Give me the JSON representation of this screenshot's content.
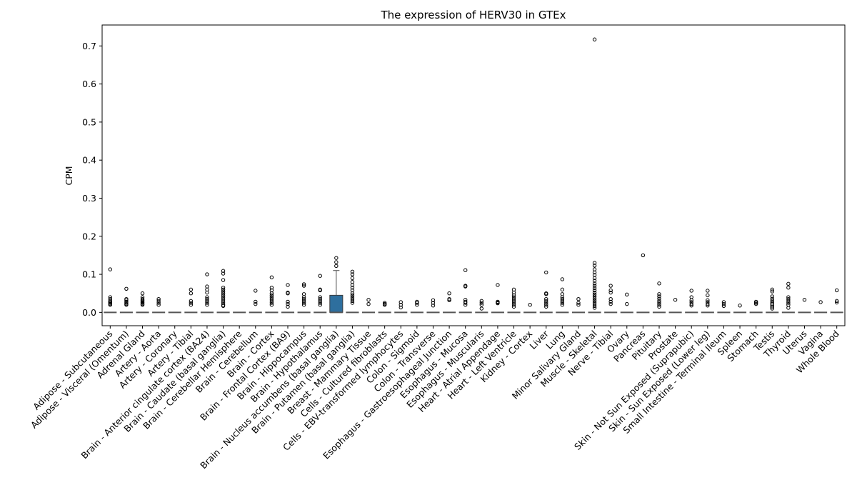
{
  "chart_data": {
    "type": "box",
    "title": "The expression of HERV30 in GTEx",
    "xlabel": "",
    "ylabel": "CPM",
    "ylim": [
      -0.035,
      0.755
    ],
    "yticks": [
      0.0,
      0.1,
      0.2,
      0.3,
      0.4,
      0.5,
      0.6,
      0.7
    ],
    "ytick_labels": [
      "0.0",
      "0.1",
      "0.2",
      "0.3",
      "0.4",
      "0.5",
      "0.6",
      "0.7"
    ],
    "box_color": "#2e6f9e",
    "median_color": "#555555",
    "categories": [
      {
        "name": "Adipose - Subcutaneous",
        "q1": 0,
        "median": 0,
        "q3": 0,
        "whisker_low": 0,
        "whisker_high": 0,
        "outliers": [
          0.113,
          0.04,
          0.035,
          0.03,
          0.027,
          0.025,
          0.022,
          0.02
        ]
      },
      {
        "name": "Adipose - Visceral (Omentum)",
        "q1": 0,
        "median": 0,
        "q3": 0,
        "whisker_low": 0,
        "whisker_high": 0,
        "outliers": [
          0.062,
          0.035,
          0.032,
          0.028,
          0.025,
          0.022,
          0.02
        ]
      },
      {
        "name": "Adrenal Gland",
        "q1": 0,
        "median": 0,
        "q3": 0,
        "whisker_low": 0,
        "whisker_high": 0,
        "outliers": [
          0.05,
          0.04,
          0.035,
          0.032,
          0.03,
          0.027,
          0.025,
          0.022,
          0.02
        ]
      },
      {
        "name": "Artery - Aorta",
        "q1": 0,
        "median": 0,
        "q3": 0,
        "whisker_low": 0,
        "whisker_high": 0,
        "outliers": [
          0.035,
          0.03,
          0.025,
          0.02
        ]
      },
      {
        "name": "Artery - Coronary",
        "q1": 0,
        "median": 0,
        "q3": 0,
        "whisker_low": 0,
        "whisker_high": 0,
        "outliers": []
      },
      {
        "name": "Artery - Tibial",
        "q1": 0,
        "median": 0,
        "q3": 0,
        "whisker_low": 0,
        "whisker_high": 0,
        "outliers": [
          0.06,
          0.05,
          0.03,
          0.025,
          0.02
        ]
      },
      {
        "name": "Brain - Anterior cingulate cortex (BA24)",
        "q1": 0,
        "median": 0,
        "q3": 0,
        "whisker_low": 0,
        "whisker_high": 0,
        "outliers": [
          0.1,
          0.068,
          0.06,
          0.052,
          0.04,
          0.035,
          0.03,
          0.025,
          0.02
        ]
      },
      {
        "name": "Brain - Caudate (basal ganglia)",
        "q1": 0,
        "median": 0,
        "q3": 0,
        "whisker_low": 0,
        "whisker_high": 0,
        "outliers": [
          0.109,
          0.102,
          0.085,
          0.065,
          0.06,
          0.055,
          0.05,
          0.045,
          0.04,
          0.035,
          0.03,
          0.025,
          0.02,
          0.017
        ]
      },
      {
        "name": "Brain - Cerebellar Hemisphere",
        "q1": 0,
        "median": 0,
        "q3": 0,
        "whisker_low": 0,
        "whisker_high": 0,
        "outliers": []
      },
      {
        "name": "Brain - Cerebellum",
        "q1": 0,
        "median": 0,
        "q3": 0,
        "whisker_low": 0,
        "whisker_high": 0,
        "outliers": [
          0.057,
          0.028,
          0.022
        ]
      },
      {
        "name": "Brain - Cortex",
        "q1": 0,
        "median": 0,
        "q3": 0,
        "whisker_low": 0,
        "whisker_high": 0,
        "outliers": [
          0.092,
          0.065,
          0.058,
          0.05,
          0.045,
          0.04,
          0.035,
          0.03,
          0.025,
          0.02
        ]
      },
      {
        "name": "Brain - Frontal Cortex (BA9)",
        "q1": 0,
        "median": 0,
        "q3": 0,
        "whisker_low": 0,
        "whisker_high": 0,
        "outliers": [
          0.072,
          0.052,
          0.05,
          0.028,
          0.022,
          0.015
        ]
      },
      {
        "name": "Brain - Hippocampus",
        "q1": 0,
        "median": 0,
        "q3": 0,
        "whisker_low": 0,
        "whisker_high": 0,
        "outliers": [
          0.074,
          0.07,
          0.048,
          0.04,
          0.035,
          0.03,
          0.025,
          0.02
        ]
      },
      {
        "name": "Brain - Hypothalamus",
        "q1": 0,
        "median": 0,
        "q3": 0,
        "whisker_low": 0,
        "whisker_high": 0,
        "outliers": [
          0.096,
          0.06,
          0.058,
          0.04,
          0.035,
          0.03,
          0.025,
          0.02
        ]
      },
      {
        "name": "Brain - Nucleus accumbens (basal ganglia)",
        "q1": 0,
        "median": 0,
        "q3": 0.045,
        "whisker_low": 0,
        "whisker_high": 0.11,
        "outliers": [
          0.143,
          0.132,
          0.122
        ]
      },
      {
        "name": "Brain - Putamen (basal ganglia)",
        "q1": 0,
        "median": 0,
        "q3": 0,
        "whisker_low": 0,
        "whisker_high": 0,
        "outliers": [
          0.107,
          0.1,
          0.09,
          0.08,
          0.072,
          0.065,
          0.058,
          0.05,
          0.045,
          0.04,
          0.035,
          0.03,
          0.025
        ]
      },
      {
        "name": "Breast - Mammary Tissue",
        "q1": 0,
        "median": 0,
        "q3": 0,
        "whisker_low": 0,
        "whisker_high": 0,
        "outliers": [
          0.033,
          0.022
        ]
      },
      {
        "name": "Cells - Cultured fibroblasts",
        "q1": 0,
        "median": 0,
        "q3": 0,
        "whisker_low": 0,
        "whisker_high": 0,
        "outliers": [
          0.025,
          0.022,
          0.02
        ]
      },
      {
        "name": "Cells - EBV-transformed lymphocytes",
        "q1": 0,
        "median": 0,
        "q3": 0,
        "whisker_low": 0,
        "whisker_high": 0,
        "outliers": [
          0.027,
          0.02,
          0.013
        ]
      },
      {
        "name": "Colon - Sigmoid",
        "q1": 0,
        "median": 0,
        "q3": 0,
        "whisker_low": 0,
        "whisker_high": 0,
        "outliers": [
          0.028,
          0.025,
          0.02
        ]
      },
      {
        "name": "Colon - Transverse",
        "q1": 0,
        "median": 0,
        "q3": 0,
        "whisker_low": 0,
        "whisker_high": 0,
        "outliers": [
          0.032,
          0.025,
          0.018
        ]
      },
      {
        "name": "Esophagus - Gastroesophageal Junction",
        "q1": 0,
        "median": 0,
        "q3": 0,
        "whisker_low": 0,
        "whisker_high": 0,
        "outliers": [
          0.05,
          0.035,
          0.032
        ]
      },
      {
        "name": "Esophagus - Mucosa",
        "q1": 0,
        "median": 0,
        "q3": 0,
        "whisker_low": 0,
        "whisker_high": 0,
        "outliers": [
          0.111,
          0.07,
          0.068,
          0.033,
          0.028,
          0.025,
          0.02
        ]
      },
      {
        "name": "Esophagus - Muscularis",
        "q1": 0,
        "median": 0,
        "q3": 0,
        "whisker_low": 0,
        "whisker_high": 0,
        "outliers": [
          0.03,
          0.025,
          0.02,
          0.01
        ]
      },
      {
        "name": "Heart - Atrial Appendage",
        "q1": 0,
        "median": 0,
        "q3": 0,
        "whisker_low": 0,
        "whisker_high": 0,
        "outliers": [
          0.072,
          0.028,
          0.026,
          0.024
        ]
      },
      {
        "name": "Heart - Left Ventricle",
        "q1": 0,
        "median": 0,
        "q3": 0,
        "whisker_low": 0,
        "whisker_high": 0,
        "outliers": [
          0.06,
          0.052,
          0.045,
          0.04,
          0.035,
          0.03,
          0.025,
          0.02,
          0.015
        ]
      },
      {
        "name": "Kidney - Cortex",
        "q1": 0,
        "median": 0,
        "q3": 0,
        "whisker_low": 0,
        "whisker_high": 0,
        "outliers": [
          0.02
        ]
      },
      {
        "name": "Liver",
        "q1": 0,
        "median": 0,
        "q3": 0,
        "whisker_low": 0,
        "whisker_high": 0,
        "outliers": [
          0.105,
          0.05,
          0.048,
          0.035,
          0.03,
          0.025,
          0.02,
          0.015
        ]
      },
      {
        "name": "Lung",
        "q1": 0,
        "median": 0,
        "q3": 0,
        "whisker_low": 0,
        "whisker_high": 0,
        "outliers": [
          0.087,
          0.06,
          0.048,
          0.04,
          0.035,
          0.03,
          0.025,
          0.02
        ]
      },
      {
        "name": "Minor Salivary Gland",
        "q1": 0,
        "median": 0,
        "q3": 0,
        "whisker_low": 0,
        "whisker_high": 0,
        "outliers": [
          0.035,
          0.025,
          0.02
        ]
      },
      {
        "name": "Muscle - Skeletal",
        "q1": 0,
        "median": 0,
        "q3": 0,
        "whisker_low": 0,
        "whisker_high": 0,
        "outliers": [
          0.717,
          0.13,
          0.123,
          0.113,
          0.105,
          0.098,
          0.09,
          0.083,
          0.076,
          0.07,
          0.064,
          0.058,
          0.052,
          0.047,
          0.042,
          0.037,
          0.032,
          0.027,
          0.022,
          0.017,
          0.012
        ]
      },
      {
        "name": "Nerve - Tibial",
        "q1": 0,
        "median": 0,
        "q3": 0,
        "whisker_low": 0,
        "whisker_high": 0,
        "outliers": [
          0.07,
          0.058,
          0.052,
          0.035,
          0.028,
          0.022
        ]
      },
      {
        "name": "Ovary",
        "q1": 0,
        "median": 0,
        "q3": 0,
        "whisker_low": 0,
        "whisker_high": 0,
        "outliers": [
          0.047,
          0.022
        ]
      },
      {
        "name": "Pancreas",
        "q1": 0,
        "median": 0,
        "q3": 0,
        "whisker_low": 0,
        "whisker_high": 0,
        "outliers": [
          0.15
        ]
      },
      {
        "name": "Pituitary",
        "q1": 0,
        "median": 0,
        "q3": 0,
        "whisker_low": 0,
        "whisker_high": 0,
        "outliers": [
          0.076,
          0.048,
          0.042,
          0.036,
          0.03,
          0.025,
          0.02,
          0.015
        ]
      },
      {
        "name": "Prostate",
        "q1": 0,
        "median": 0,
        "q3": 0,
        "whisker_low": 0,
        "whisker_high": 0,
        "outliers": [
          0.033
        ]
      },
      {
        "name": "Skin - Not Sun Exposed (Suprapubic)",
        "q1": 0,
        "median": 0,
        "q3": 0,
        "whisker_low": 0,
        "whisker_high": 0,
        "outliers": [
          0.057,
          0.04,
          0.032,
          0.027,
          0.022,
          0.018
        ]
      },
      {
        "name": "Skin - Sun Exposed (Lower leg)",
        "q1": 0,
        "median": 0,
        "q3": 0,
        "whisker_low": 0,
        "whisker_high": 0,
        "outliers": [
          0.057,
          0.045,
          0.032,
          0.027,
          0.022,
          0.018
        ]
      },
      {
        "name": "Small Intestine - Terminal Ileum",
        "q1": 0,
        "median": 0,
        "q3": 0,
        "whisker_low": 0,
        "whisker_high": 0,
        "outliers": [
          0.027,
          0.022,
          0.017
        ]
      },
      {
        "name": "Spleen",
        "q1": 0,
        "median": 0,
        "q3": 0,
        "whisker_low": 0,
        "whisker_high": 0,
        "outliers": [
          0.018
        ]
      },
      {
        "name": "Stomach",
        "q1": 0,
        "median": 0,
        "q3": 0,
        "whisker_low": 0,
        "whisker_high": 0,
        "outliers": [
          0.028,
          0.025,
          0.022
        ]
      },
      {
        "name": "Testis",
        "q1": 0,
        "median": 0,
        "q3": 0,
        "whisker_low": 0,
        "whisker_high": 0,
        "outliers": [
          0.06,
          0.055,
          0.042,
          0.036,
          0.031,
          0.026,
          0.022,
          0.018,
          0.014,
          0.01
        ]
      },
      {
        "name": "Thyroid",
        "q1": 0,
        "median": 0,
        "q3": 0,
        "whisker_low": 0,
        "whisker_high": 0,
        "outliers": [
          0.075,
          0.065,
          0.04,
          0.035,
          0.03,
          0.025,
          0.02,
          0.012
        ]
      },
      {
        "name": "Uterus",
        "q1": 0,
        "median": 0,
        "q3": 0,
        "whisker_low": 0,
        "whisker_high": 0,
        "outliers": [
          0.033
        ]
      },
      {
        "name": "Vagina",
        "q1": 0,
        "median": 0,
        "q3": 0,
        "whisker_low": 0,
        "whisker_high": 0,
        "outliers": [
          0.027
        ]
      },
      {
        "name": "Whole Blood",
        "q1": 0,
        "median": 0,
        "q3": 0,
        "whisker_low": 0,
        "whisker_high": 0,
        "outliers": [
          0.058,
          0.03,
          0.026
        ]
      }
    ]
  }
}
